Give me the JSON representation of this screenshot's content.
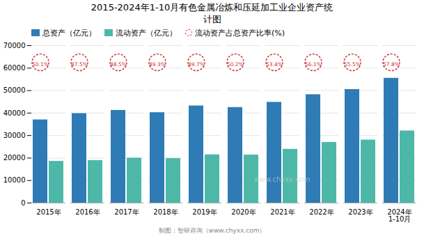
{
  "chart_data": {
    "type": "bar",
    "title": "2015-2024年1-10月有色金属冶炼和压延加工业企业资产统\n计图",
    "categories": [
      "2015年",
      "2016年",
      "2017年",
      "2018年",
      "2019年",
      "2020年",
      "2021年",
      "2022年",
      "2023年",
      "2024年\n1-10月"
    ],
    "series": [
      {
        "name": "总资产（亿元）",
        "color": "#2e7bb5",
        "values": [
          37000,
          39800,
          41200,
          40200,
          43200,
          42500,
          44800,
          48200,
          50500,
          55500
        ]
      },
      {
        "name": "流动资产（亿元）",
        "color": "#4db8a8",
        "values": [
          18550,
          18900,
          19980,
          19800,
          21470,
          21350,
          23920,
          26990,
          28030,
          32080
        ]
      }
    ],
    "ratio": {
      "name": "流动资产占总资产比率(%)",
      "color": "#cc3333",
      "marker": "circle",
      "line_style": "dashed",
      "values": [
        50.1,
        47.5,
        48.5,
        49.3,
        49.7,
        50.2,
        53.4,
        56.1,
        55.5,
        57.8
      ],
      "value_labels": [
        "50.1%",
        "47.5%",
        "48.5%",
        "49.3%",
        "49.7%",
        "50.2%",
        "53.4%",
        "56.1%",
        "55.5%",
        "57.8%"
      ]
    },
    "ylim": [
      0,
      70000
    ],
    "yticks": [
      0,
      10000,
      20000,
      30000,
      40000,
      50000,
      60000,
      70000
    ],
    "grid": true,
    "legend": "upper-left",
    "footer": "制图：智研咨询（www.chyxx.com）",
    "watermark": "www.chyxx.com"
  }
}
